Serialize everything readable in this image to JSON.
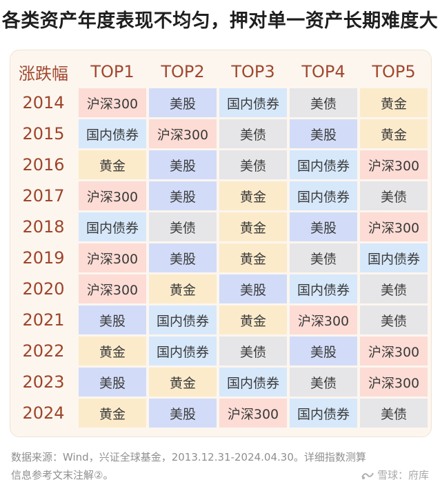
{
  "title": "各类资产年度表现不均匀，押对单一资产长期难度大",
  "colors": {
    "沪深300": "#fcdcd5",
    "美股": "#d2dcf8",
    "国内债券": "#d7e8fb",
    "美债": "#e6e6e8",
    "黄金": "#fcebcb"
  },
  "chart_data": {
    "type": "table",
    "columns": [
      "涨跌幅",
      "TOP1",
      "TOP2",
      "TOP3",
      "TOP4",
      "TOP5"
    ],
    "rows": [
      {
        "year": "2014",
        "values": [
          "沪深300",
          "美股",
          "国内债券",
          "美债",
          "黄金"
        ]
      },
      {
        "year": "2015",
        "values": [
          "国内债券",
          "沪深300",
          "美债",
          "美股",
          "黄金"
        ]
      },
      {
        "year": "2016",
        "values": [
          "黄金",
          "美股",
          "美债",
          "国内债券",
          "沪深300"
        ]
      },
      {
        "year": "2017",
        "values": [
          "沪深300",
          "美股",
          "黄金",
          "国内债券",
          "美债"
        ]
      },
      {
        "year": "2018",
        "values": [
          "国内债券",
          "美债",
          "黄金",
          "美股",
          "沪深300"
        ]
      },
      {
        "year": "2019",
        "values": [
          "沪深300",
          "美股",
          "黄金",
          "美债",
          "国内债券"
        ]
      },
      {
        "year": "2020",
        "values": [
          "沪深300",
          "黄金",
          "美股",
          "国内债券",
          "美债"
        ]
      },
      {
        "year": "2021",
        "values": [
          "美股",
          "国内债券",
          "黄金",
          "沪深300",
          "美债"
        ]
      },
      {
        "year": "2022",
        "values": [
          "黄金",
          "国内债券",
          "美债",
          "美股",
          "沪深300"
        ]
      },
      {
        "year": "2023",
        "values": [
          "美股",
          "黄金",
          "国内债券",
          "美债",
          "沪深300"
        ]
      },
      {
        "year": "2024",
        "values": [
          "黄金",
          "美股",
          "沪深300",
          "国内债券",
          "美债"
        ]
      }
    ]
  },
  "footer": {
    "line1": "数据来源：Wind，兴证全球基金，2013.12.31-2024.04.30。详细指数测算",
    "line2": "信息参考文末注解②。"
  },
  "watermark": {
    "text": "雪球：府库",
    "icon": "xueqiu-logo-icon"
  }
}
